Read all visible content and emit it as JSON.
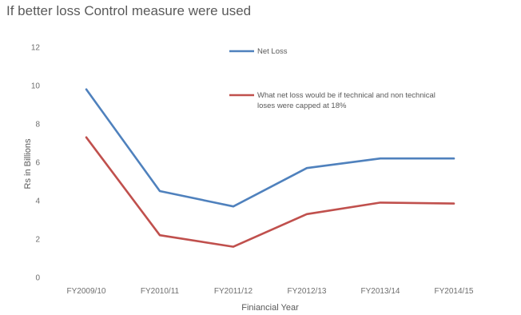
{
  "chart_data": {
    "type": "line",
    "title": "If better loss Control measure were used",
    "xlabel": "Finiancial Year",
    "ylabel": "Rs in Billions",
    "categories": [
      "FY2009/10",
      "FY2010/11",
      "FY2011/12",
      "FY2012/13",
      "FY2013/14",
      "FY2014/15"
    ],
    "ylim": [
      0,
      12
    ],
    "yticks": [
      0,
      2,
      4,
      6,
      8,
      10,
      12
    ],
    "grid": false,
    "legend_position": "right",
    "series": [
      {
        "name": "Net Loss",
        "color": "#4f81bd",
        "values": [
          9.8,
          4.5,
          3.7,
          5.7,
          6.2,
          6.2
        ]
      },
      {
        "name": "What net loss would be if technical and non technical loses were capped at 18%",
        "color": "#c0504d",
        "values": [
          7.3,
          2.2,
          1.6,
          3.3,
          3.9,
          3.85
        ]
      }
    ]
  }
}
